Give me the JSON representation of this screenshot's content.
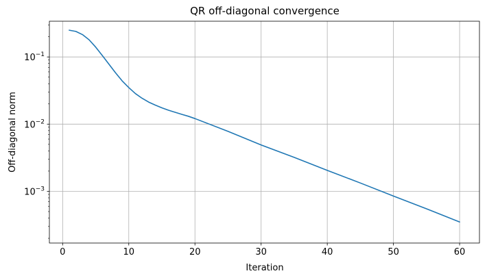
{
  "chart_data": {
    "type": "line",
    "title": "QR off-diagonal convergence",
    "xlabel": "Iteration",
    "ylabel": "Off-diagonal norm",
    "xscale": "linear",
    "yscale": "log",
    "xlim": [
      -2,
      63
    ],
    "ylim": [
      0.00017,
      0.34
    ],
    "grid": true,
    "x_ticks": [
      0,
      10,
      20,
      30,
      40,
      50,
      60
    ],
    "y_ticks": [
      {
        "value": 0.001,
        "base": "10",
        "exp": "−3"
      },
      {
        "value": 0.01,
        "base": "10",
        "exp": "−2"
      },
      {
        "value": 0.1,
        "base": "10",
        "exp": "−1"
      }
    ],
    "series": [
      {
        "color": "#1f77b4",
        "x": [
          1,
          2,
          3,
          4,
          5,
          6,
          7,
          8,
          9,
          10,
          11,
          12,
          13,
          14,
          15,
          16,
          17,
          18,
          19,
          20,
          25,
          30,
          35,
          40,
          45,
          50,
          55,
          60
        ],
        "y": [
          0.25,
          0.24,
          0.215,
          0.18,
          0.14,
          0.105,
          0.078,
          0.058,
          0.044,
          0.035,
          0.0285,
          0.0243,
          0.0213,
          0.0192,
          0.0175,
          0.0161,
          0.015,
          0.014,
          0.0131,
          0.0121,
          0.0078,
          0.0049,
          0.0032,
          0.00205,
          0.00133,
          0.00085,
          0.00055,
          0.00035
        ]
      }
    ]
  }
}
